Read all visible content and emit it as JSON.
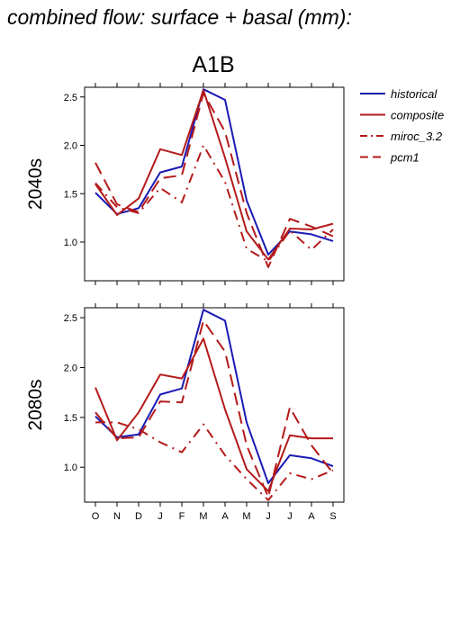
{
  "main_title": "combined flow: surface + basal (mm):",
  "chart_data": {
    "type": "line",
    "title": "A1B",
    "categories": [
      "O",
      "N",
      "D",
      "J",
      "F",
      "M",
      "A",
      "M",
      "J",
      "J",
      "A",
      "S"
    ],
    "yticks": [
      "1.0",
      "1.5",
      "2.0",
      "2.5"
    ],
    "legend": {
      "placement": "top-right",
      "entries": [
        {
          "name": "historical",
          "color": "#1a1ab4",
          "dash": "solid"
        },
        {
          "name": "composite",
          "color": "#b41a1a",
          "dash": "solid"
        },
        {
          "name": "miroc_3.2",
          "color": "#b41a1a",
          "dash": "dashdot"
        },
        {
          "name": "pcm1",
          "color": "#b41a1a",
          "dash": "dashed"
        }
      ]
    },
    "panels": [
      {
        "label": "2040s",
        "ylim": [
          0.6,
          2.6
        ],
        "series": [
          {
            "name": "historical",
            "values": [
              1.51,
              1.29,
              1.35,
              1.72,
              1.78,
              2.58,
              2.47,
              1.43,
              0.87,
              1.11,
              1.08,
              1.01
            ]
          },
          {
            "name": "composite",
            "values": [
              1.6,
              1.28,
              1.45,
              1.96,
              1.9,
              2.57,
              1.87,
              1.11,
              0.82,
              1.14,
              1.13,
              1.19
            ]
          },
          {
            "name": "miroc_3.2",
            "values": [
              1.61,
              1.36,
              1.3,
              1.56,
              1.41,
              2.0,
              1.62,
              0.93,
              0.8,
              1.12,
              0.92,
              1.13
            ]
          },
          {
            "name": "pcm1",
            "values": [
              1.82,
              1.39,
              1.31,
              1.66,
              1.69,
              2.54,
              2.14,
              1.3,
              0.74,
              1.24,
              1.16,
              1.06
            ]
          }
        ]
      },
      {
        "label": "2080s",
        "ylim": [
          0.65,
          2.6
        ],
        "series": [
          {
            "name": "historical",
            "values": [
              1.51,
              1.3,
              1.33,
              1.73,
              1.79,
              2.58,
              2.47,
              1.45,
              0.84,
              1.12,
              1.09,
              1.01
            ]
          },
          {
            "name": "composite",
            "values": [
              1.8,
              1.27,
              1.55,
              1.93,
              1.89,
              2.29,
              1.58,
              0.98,
              0.76,
              1.32,
              1.29,
              1.29
            ]
          },
          {
            "name": "miroc_3.2",
            "values": [
              1.45,
              1.45,
              1.38,
              1.25,
              1.15,
              1.43,
              1.12,
              0.88,
              0.67,
              0.94,
              0.88,
              0.97
            ]
          },
          {
            "name": "pcm1",
            "values": [
              1.55,
              1.29,
              1.3,
              1.66,
              1.65,
              2.47,
              2.16,
              1.22,
              0.7,
              1.6,
              1.22,
              0.94
            ]
          }
        ]
      }
    ]
  }
}
